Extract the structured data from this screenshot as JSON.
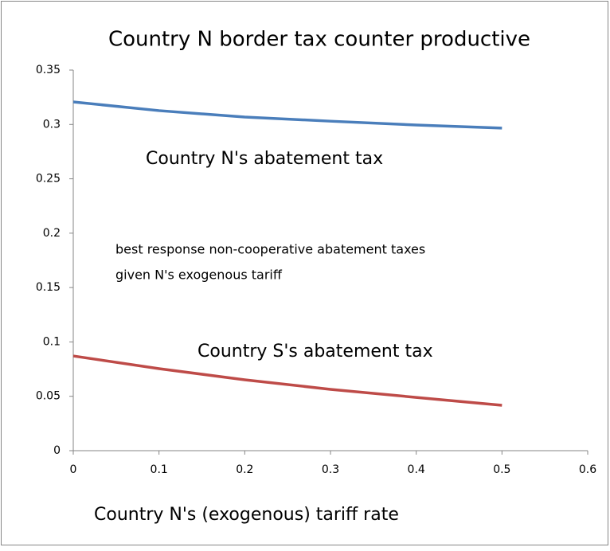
{
  "chart_data": {
    "type": "line",
    "title": "Country N border tax counter productive",
    "x_label": "Country N's (exogenous) tariff rate",
    "x": [
      0,
      0.1,
      0.2,
      0.3,
      0.4,
      0.5
    ],
    "series": [
      {
        "name": "Country N's abatement tax",
        "color": "#4a7ebb",
        "values": [
          0.3207,
          0.3127,
          0.3068,
          0.303,
          0.2995,
          0.2966
        ]
      },
      {
        "name": "Country S's abatement tax",
        "color": "#be4b48",
        "values": [
          0.0871,
          0.0754,
          0.0652,
          0.0564,
          0.049,
          0.0417
        ]
      }
    ],
    "annotations": [
      "best response non-cooperative abatement taxes",
      "given N's exogenous tariff"
    ],
    "xlim": [
      0,
      0.6
    ],
    "xticks": [
      0,
      0.1,
      0.2,
      0.3,
      0.4,
      0.5,
      0.6
    ],
    "ylim": [
      0,
      0.35
    ],
    "yticks": [
      0,
      0.05,
      0.1,
      0.15,
      0.2,
      0.25,
      0.3,
      0.35
    ],
    "grid": false,
    "legend": false
  }
}
